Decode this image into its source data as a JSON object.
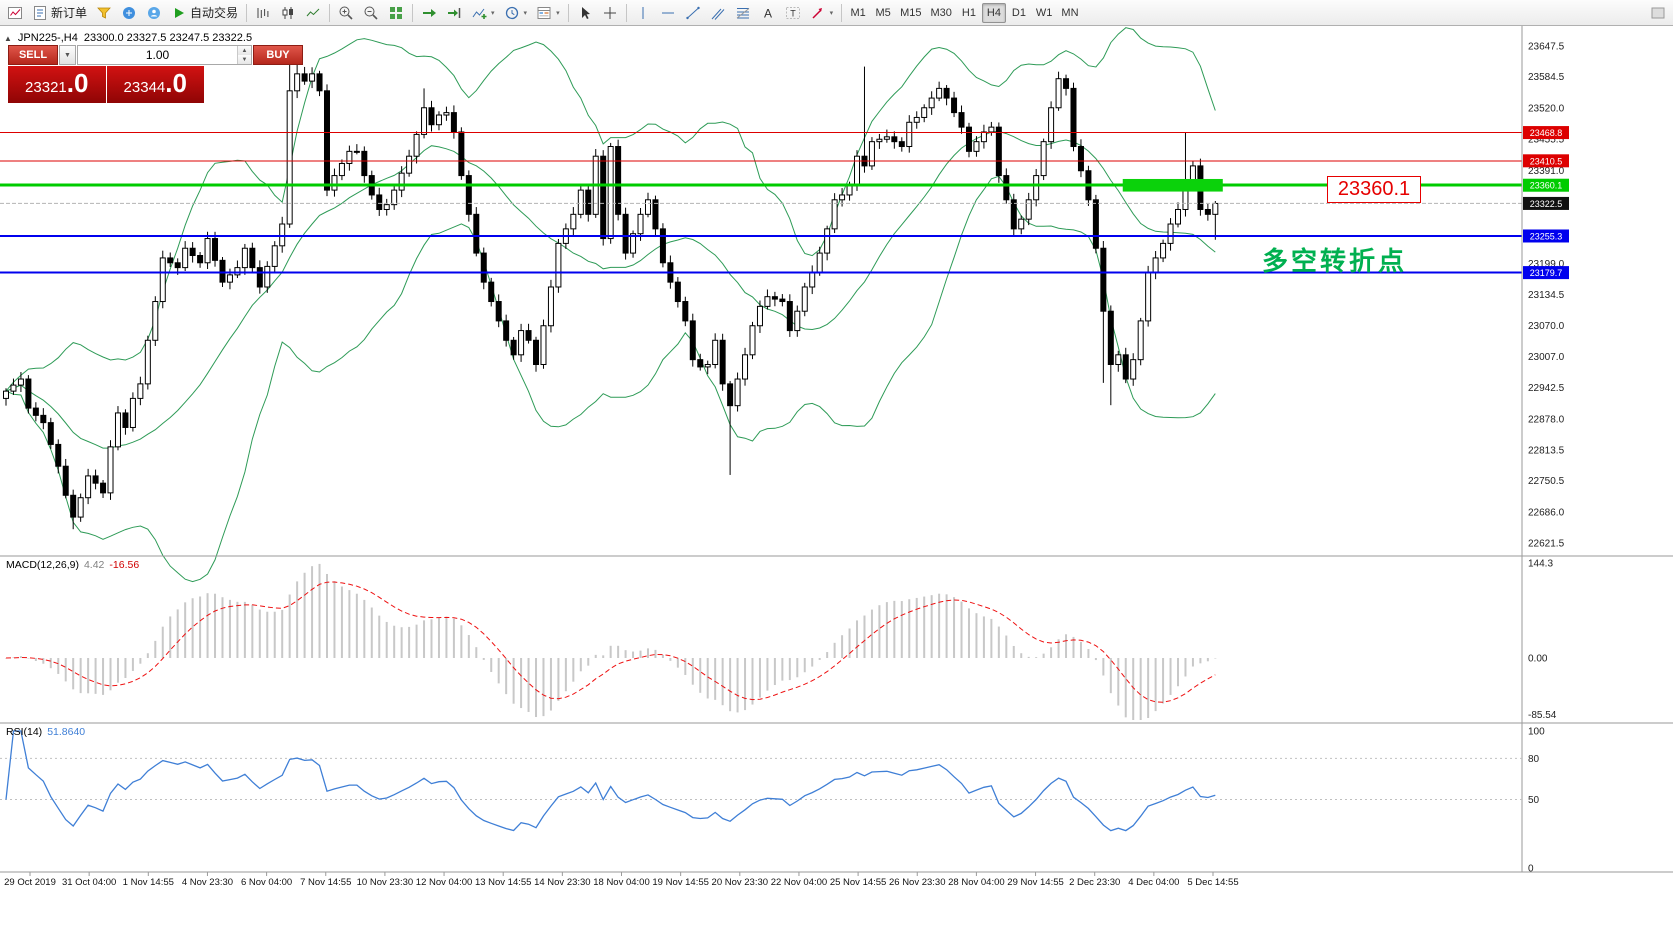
{
  "toolbar": {
    "new_order_label": "新订单",
    "auto_trading_label": "自动交易",
    "timeframes": [
      "M1",
      "M5",
      "M15",
      "M30",
      "H1",
      "H4",
      "D1",
      "W1",
      "MN"
    ],
    "active_timeframe": "H4"
  },
  "chart": {
    "header": {
      "symbol_period": "JPN225-,H4",
      "ohlc_text": "23300.0 23327.5 23247.5 23322.5"
    },
    "trade_panel": {
      "sell_label": "SELL",
      "buy_label": "BUY",
      "volume": "1.00",
      "sell_price_base": "23321",
      "sell_price_frac": ".0",
      "buy_price_base": "23344",
      "buy_price_frac": ".0"
    },
    "annotations": {
      "price_callout": "23360.1",
      "turning_point": "多空转折点"
    },
    "indicators": {
      "macd": {
        "name": "MACD(12,26,9)",
        "main_value": "4.42",
        "signal_value": "-16.56"
      },
      "rsi": {
        "name": "RSI(14)",
        "value": "51.8640"
      }
    }
  },
  "chart_data": {
    "type": "candlestick",
    "symbol": "JPN225-",
    "timeframe": "H4",
    "bar_count": 163,
    "price_tick_labels": [
      "23647.5",
      "23584.5",
      "23520.0",
      "23455.5",
      "23391.0",
      "23199.0",
      "23134.5",
      "23070.0",
      "23007.0",
      "22942.5",
      "22878.0",
      "22813.5",
      "22750.5",
      "22686.0",
      "22621.5"
    ],
    "x_labels": [
      "29 Oct 2019",
      "31 Oct 04:00",
      "1 Nov 14:55",
      "4 Nov 23:30",
      "6 Nov 04:00",
      "7 Nov 14:55",
      "10 Nov 23:30",
      "12 Nov 04:00",
      "13 Nov 14:55",
      "14 Nov 23:30",
      "18 Nov 04:00",
      "19 Nov 14:55",
      "20 Nov 23:30",
      "22 Nov 04:00",
      "25 Nov 14:55",
      "26 Nov 23:30",
      "28 Nov 04:00",
      "29 Nov 14:55",
      "2 Dec 23:30",
      "4 Dec 04:00",
      "5 Dec 14:55"
    ],
    "levels": [
      {
        "price": 23468.8,
        "label": "23468.8",
        "color": "#dd0000",
        "width": 1
      },
      {
        "price": 23410.5,
        "label": "23410.5",
        "color": "#dd0000",
        "width": 1
      },
      {
        "price": 23360.1,
        "label": "23360.1",
        "color": "#00cc00",
        "width": 3
      },
      {
        "price": 23255.3,
        "label": "23255.3",
        "color": "#0000ee",
        "width": 2
      },
      {
        "price": 23179.7,
        "label": "23179.7",
        "color": "#0000ee",
        "width": 2
      }
    ],
    "current_price": {
      "price": 23322.5,
      "label": "23322.5",
      "badge_color": "#111111"
    },
    "highlight_zone": {
      "from_bar": 150,
      "to_bar": 163,
      "top_price": 23373,
      "bottom_price": 23347,
      "color": "#0bd20b"
    },
    "last_candle": {
      "open": 23300.0,
      "high": 23327.5,
      "low": 23247.5,
      "close": 23322.5
    },
    "close_anchors": [
      [
        0,
        22935
      ],
      [
        2,
        22960
      ],
      [
        3,
        22900
      ],
      [
        5,
        22870
      ],
      [
        7,
        22780
      ],
      [
        8,
        22720
      ],
      [
        9,
        22675
      ],
      [
        10,
        22715
      ],
      [
        11,
        22760
      ],
      [
        12,
        22745
      ],
      [
        13,
        22725
      ],
      [
        14,
        22820
      ],
      [
        15,
        22890
      ],
      [
        16,
        22860
      ],
      [
        17,
        22920
      ],
      [
        18,
        22950
      ],
      [
        19,
        23040
      ],
      [
        20,
        23120
      ],
      [
        21,
        23210
      ],
      [
        23,
        23190
      ],
      [
        24,
        23230
      ],
      [
        26,
        23200
      ],
      [
        27,
        23250
      ],
      [
        29,
        23160
      ],
      [
        31,
        23190
      ],
      [
        32,
        23230
      ],
      [
        34,
        23150
      ],
      [
        36,
        23235
      ],
      [
        37,
        23280
      ],
      [
        38,
        23555
      ],
      [
        39,
        23590
      ],
      [
        40,
        23575
      ],
      [
        41,
        23590
      ],
      [
        42,
        23555
      ],
      [
        43,
        23350
      ],
      [
        44,
        23380
      ],
      [
        45,
        23405
      ],
      [
        46,
        23430
      ],
      [
        47,
        23430
      ],
      [
        48,
        23380
      ],
      [
        49,
        23340
      ],
      [
        50,
        23310
      ],
      [
        51,
        23320
      ],
      [
        52,
        23350
      ],
      [
        53,
        23385
      ],
      [
        54,
        23420
      ],
      [
        55,
        23465
      ],
      [
        56,
        23520
      ],
      [
        57,
        23485
      ],
      [
        58,
        23505
      ],
      [
        59,
        23510
      ],
      [
        60,
        23470
      ],
      [
        61,
        23380
      ],
      [
        62,
        23300
      ],
      [
        63,
        23220
      ],
      [
        64,
        23160
      ],
      [
        65,
        23120
      ],
      [
        66,
        23080
      ],
      [
        67,
        23040
      ],
      [
        68,
        23010
      ],
      [
        69,
        23060
      ],
      [
        70,
        23040
      ],
      [
        71,
        22990
      ],
      [
        72,
        23070
      ],
      [
        73,
        23150
      ],
      [
        74,
        23240
      ],
      [
        75,
        23270
      ],
      [
        76,
        23300
      ],
      [
        77,
        23350
      ],
      [
        78,
        23300
      ],
      [
        79,
        23420
      ],
      [
        80,
        23250
      ],
      [
        81,
        23440
      ],
      [
        82,
        23300
      ],
      [
        83,
        23220
      ],
      [
        84,
        23260
      ],
      [
        85,
        23300
      ],
      [
        86,
        23330
      ],
      [
        87,
        23270
      ],
      [
        88,
        23200
      ],
      [
        89,
        23160
      ],
      [
        90,
        23120
      ],
      [
        91,
        23080
      ],
      [
        92,
        23000
      ],
      [
        93,
        22985
      ],
      [
        94,
        22990
      ],
      [
        95,
        23040
      ],
      [
        96,
        22950
      ],
      [
        97,
        22905
      ],
      [
        98,
        22960
      ],
      [
        99,
        23010
      ],
      [
        100,
        23070
      ],
      [
        101,
        23110
      ],
      [
        102,
        23130
      ],
      [
        103,
        23125
      ],
      [
        104,
        23120
      ],
      [
        105,
        23060
      ],
      [
        106,
        23100
      ],
      [
        107,
        23150
      ],
      [
        108,
        23180
      ],
      [
        109,
        23220
      ],
      [
        110,
        23270
      ],
      [
        111,
        23330
      ],
      [
        112,
        23340
      ],
      [
        113,
        23360
      ],
      [
        114,
        23420
      ],
      [
        115,
        23400
      ],
      [
        116,
        23450
      ],
      [
        117,
        23455
      ],
      [
        118,
        23460
      ],
      [
        119,
        23450
      ],
      [
        120,
        23440
      ],
      [
        121,
        23490
      ],
      [
        122,
        23500
      ],
      [
        123,
        23520
      ],
      [
        124,
        23540
      ],
      [
        125,
        23560
      ],
      [
        126,
        23540
      ],
      [
        127,
        23510
      ],
      [
        128,
        23480
      ],
      [
        129,
        23430
      ],
      [
        130,
        23450
      ],
      [
        131,
        23470
      ],
      [
        132,
        23480
      ],
      [
        133,
        23380
      ],
      [
        134,
        23330
      ],
      [
        135,
        23270
      ],
      [
        136,
        23290
      ],
      [
        137,
        23330
      ],
      [
        138,
        23380
      ],
      [
        139,
        23450
      ],
      [
        140,
        23520
      ],
      [
        141,
        23580
      ],
      [
        142,
        23560
      ],
      [
        143,
        23440
      ],
      [
        144,
        23390
      ],
      [
        145,
        23330
      ],
      [
        146,
        23230
      ],
      [
        147,
        23100
      ],
      [
        148,
        22990
      ],
      [
        149,
        23010
      ],
      [
        150,
        22960
      ],
      [
        151,
        23000
      ],
      [
        152,
        23080
      ],
      [
        153,
        23180
      ],
      [
        154,
        23210
      ],
      [
        155,
        23240
      ],
      [
        156,
        23280
      ],
      [
        157,
        23310
      ],
      [
        158,
        23360
      ],
      [
        159,
        23400
      ],
      [
        160,
        23310
      ],
      [
        161,
        23300
      ],
      [
        162,
        23322.5
      ]
    ],
    "wick_overrides": {
      "9": {
        "low": 22650
      },
      "38": {
        "high": 23615
      },
      "39": {
        "high": 23622
      },
      "56": {
        "high": 23560
      },
      "97": {
        "low": 22762
      },
      "115": {
        "high": 23605
      },
      "147": {
        "low": 22952
      },
      "148": {
        "low": 22906
      },
      "158": {
        "high": 23468
      }
    },
    "indicators": {
      "bollinger": {
        "period": 20,
        "deviation": 2
      },
      "macd": {
        "fast": 12,
        "slow": 26,
        "signal_period": 9,
        "axis": [
          "144.3",
          "0.00",
          "-85.54"
        ]
      },
      "rsi": {
        "period": 14,
        "axis": [
          "100",
          "80",
          "50",
          "0"
        ],
        "levels": [
          80,
          50
        ]
      }
    },
    "style": {
      "candle_color": "#000000",
      "bull_fill": "#ffffff",
      "bear_fill": "#000000",
      "bollinger_color": "#2e9b57",
      "macd_hist_color": "#c8c8c8",
      "macd_signal_color": "#ee1111",
      "rsi_color": "#3f7fd6"
    }
  }
}
